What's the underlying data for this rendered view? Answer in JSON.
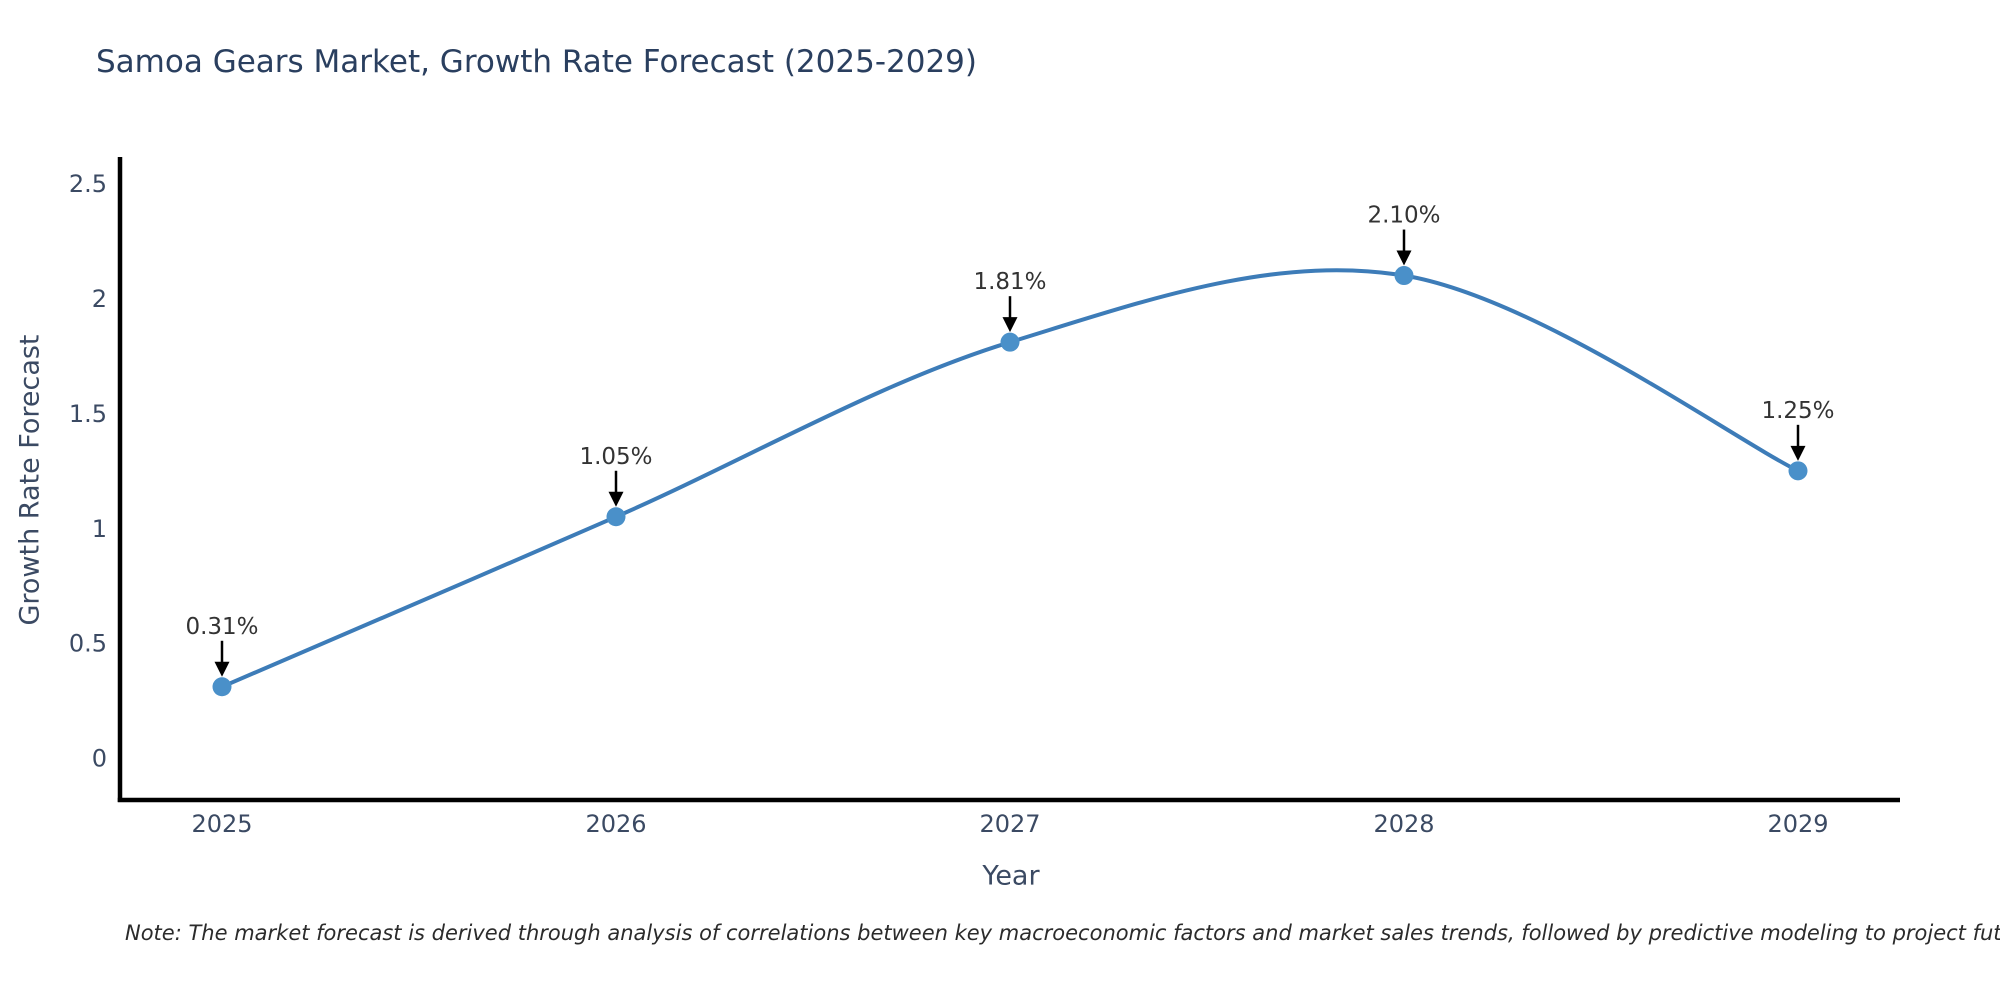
{
  "title": "Samoa Gears Market, Growth Rate Forecast (2025-2029)",
  "note": "Note: The market forecast is derived through analysis of correlations between key macroeconomic factors and market sales trends, followed by predictive modeling to project future sales",
  "chart_data": {
    "type": "line",
    "title": "Samoa Gears Market, Growth Rate Forecast (2025-2029)",
    "xlabel": "Year",
    "ylabel": "Growth Rate Forecast",
    "categories": [
      "2025",
      "2026",
      "2027",
      "2028",
      "2029"
    ],
    "values": [
      0.31,
      1.05,
      1.81,
      2.1,
      1.25
    ],
    "point_labels": [
      "0.31%",
      "1.05%",
      "1.81%",
      "2.10%",
      "1.25%"
    ],
    "yticks": [
      0,
      0.5,
      1,
      1.5,
      2,
      2.5
    ],
    "ylim": [
      -0.19,
      2.61
    ],
    "grid": false,
    "legend": "none",
    "line_shape": "spline",
    "annotation_arrows": "down-arrow-to-point",
    "colors": {
      "line": "#3d7cb8",
      "marker": "#4a90c9",
      "arrow": "#000000",
      "axis": "#000000",
      "title": "#2a3f5f",
      "tick": "#3b4a63",
      "note": "#2b2b2b"
    }
  }
}
